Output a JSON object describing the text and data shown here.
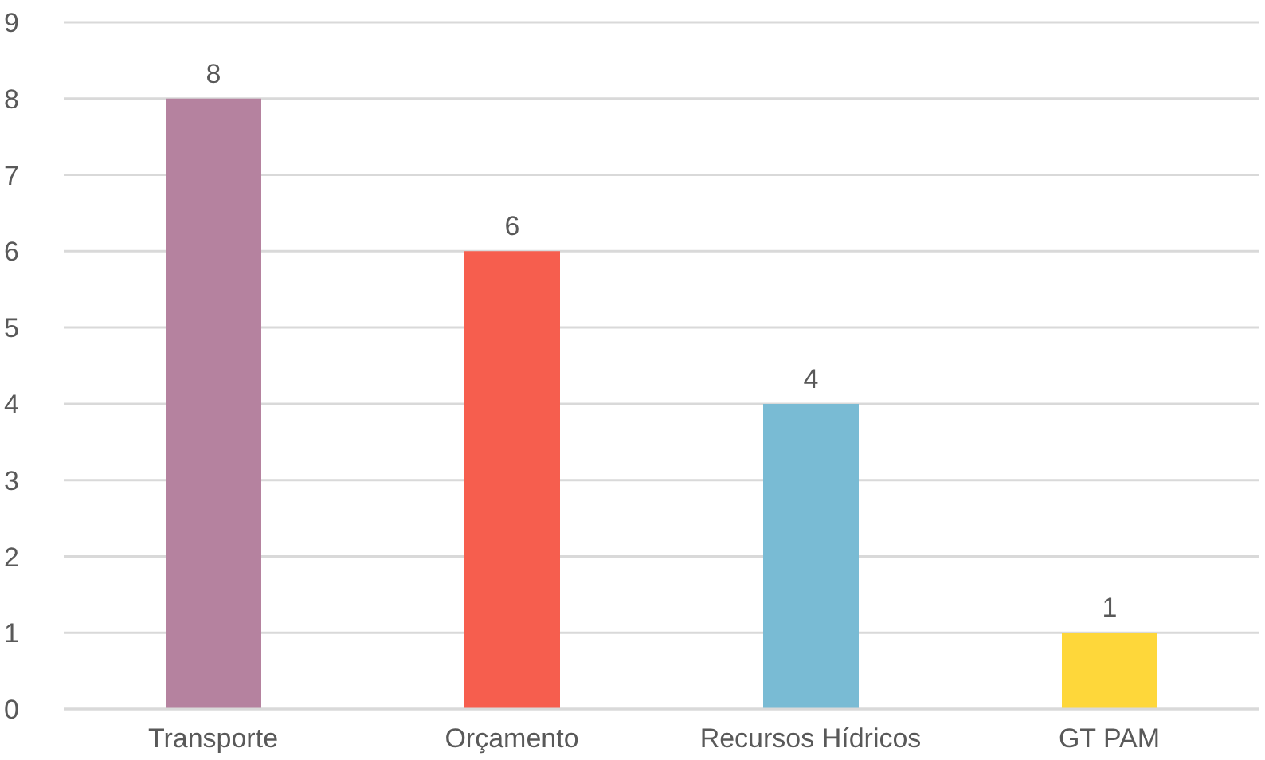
{
  "chart_data": {
    "type": "bar",
    "categories": [
      "Transporte",
      "Orçamento",
      "Recursos Hídricos",
      "GT PAM"
    ],
    "values": [
      8,
      6,
      4,
      1
    ],
    "colors": [
      "#b5829f",
      "#f65e4e",
      "#79bbd4",
      "#fed73a"
    ],
    "ylim": [
      0,
      9
    ],
    "yticks": [
      0,
      1,
      2,
      3,
      4,
      5,
      6,
      7,
      8,
      9
    ],
    "grid": "y",
    "data_labels": true
  }
}
